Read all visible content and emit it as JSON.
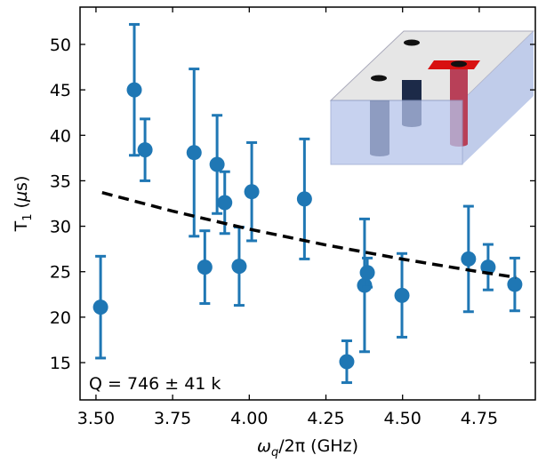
{
  "chart_data": {
    "type": "scatter",
    "xlabel_parts": [
      "ω",
      "q",
      "/2π (GHz)"
    ],
    "ylabel_parts": [
      "T",
      "1",
      " (",
      "µ",
      "s)"
    ],
    "annotation": "Q = 746 ± 41 k",
    "xlim": [
      3.448,
      4.933
    ],
    "ylim": [
      10.9,
      54.1
    ],
    "xticks": [
      {
        "value": 3.5,
        "label": "3.50"
      },
      3.75,
      {
        "value": 4.0,
        "label": "4.00"
      },
      4.25,
      {
        "value": 4.5,
        "label": "4.50"
      },
      4.75
    ],
    "yticks": [
      15,
      20,
      25,
      30,
      35,
      40,
      45,
      50
    ],
    "series": [
      {
        "color": "#1f77b4",
        "x": [
          3.515,
          3.625,
          3.66,
          3.82,
          3.855,
          3.895,
          3.92,
          3.967,
          4.008,
          4.18,
          4.318,
          4.376,
          4.385,
          4.498,
          4.715,
          4.779,
          4.866
        ],
        "values": [
          21.1,
          45,
          38.4,
          38.1,
          25.5,
          36.8,
          32.6,
          25.6,
          33.8,
          33,
          15.1,
          23.5,
          24.9,
          22.4,
          26.4,
          25.5,
          23.6
        ],
        "errors": [
          5.6,
          7.2,
          3.4,
          9.2,
          4,
          5.4,
          3.4,
          4.3,
          5.4,
          6.6,
          2.3,
          7.3,
          1.6,
          4.6,
          5.8,
          2.5,
          2.9
        ]
      },
      {
        "color": "#000000",
        "dashed": true,
        "x": [
          3.52,
          3.75,
          4.0,
          4.25,
          4.5,
          4.75,
          4.87
        ],
        "values": [
          33.7,
          31.66,
          29.68,
          27.94,
          26.38,
          24.99,
          24.38
        ]
      }
    ]
  }
}
